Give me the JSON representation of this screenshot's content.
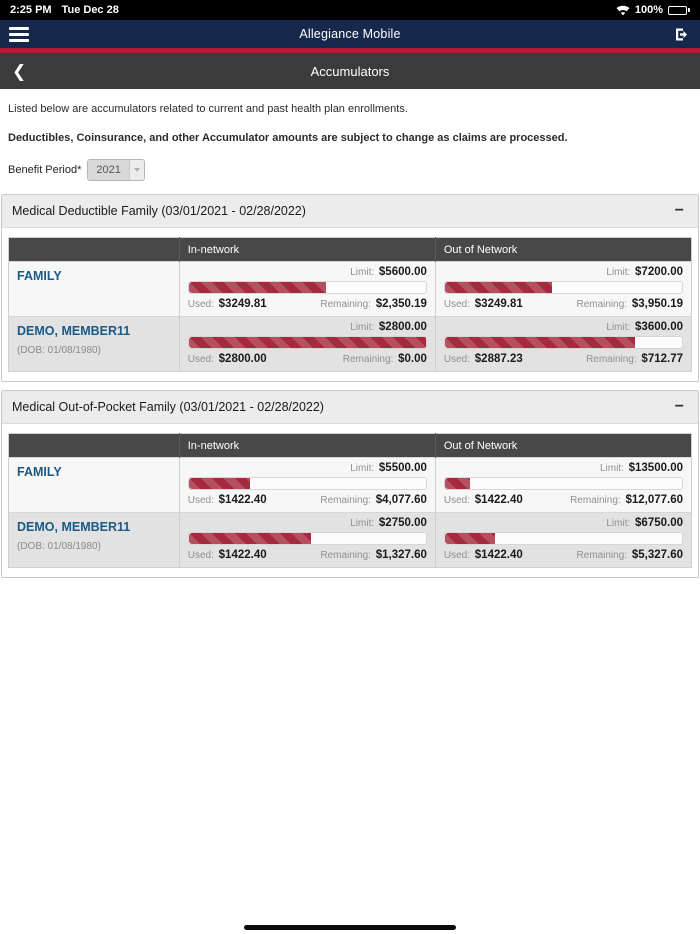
{
  "status_bar": {
    "time": "2:25 PM",
    "date": "Tue Dec 28",
    "battery": "100%"
  },
  "nav": {
    "title": "Allegiance Mobile"
  },
  "subheader": {
    "title": "Accumulators",
    "back": "❮"
  },
  "intro": {
    "line1": "Listed below are accumulators related to current and past health plan enrollments.",
    "line2": "Deductibles, Coinsurance, and other Accumulator amounts are subject to change as claims are processed."
  },
  "benefit_period": {
    "label": "Benefit Period*",
    "value": "2021"
  },
  "labels": {
    "in_network": "In-network",
    "out_of_network": "Out of Network",
    "limit": "Limit:",
    "used": "Used:",
    "remaining": "Remaining:",
    "collapse": "−"
  },
  "colors": {
    "navy": "#16294d",
    "red_strip": "#ae2038",
    "bar_red": "#a52a3d",
    "table_header": "#484848",
    "member_name_blue": "#1a5a86"
  },
  "sections": [
    {
      "title": "Medical Deductible Family (03/01/2021 - 02/28/2022)",
      "rows": [
        {
          "name": "FAMILY",
          "dob": "",
          "in_network": {
            "limit": "$5600.00",
            "used": "$3249.81",
            "remaining": "$2,350.19",
            "pct": 58
          },
          "out_of_network": {
            "limit": "$7200.00",
            "used": "$3249.81",
            "remaining": "$3,950.19",
            "pct": 45.1
          }
        },
        {
          "name": "DEMO, MEMBER11",
          "dob": "(DOB: 01/08/1980)",
          "in_network": {
            "limit": "$2800.00",
            "used": "$2800.00",
            "remaining": "$0.00",
            "pct": 100
          },
          "out_of_network": {
            "limit": "$3600.00",
            "used": "$2887.23",
            "remaining": "$712.77",
            "pct": 80.2
          }
        }
      ]
    },
    {
      "title": "Medical Out-of-Pocket Family (03/01/2021 - 02/28/2022)",
      "rows": [
        {
          "name": "FAMILY",
          "dob": "",
          "in_network": {
            "limit": "$5500.00",
            "used": "$1422.40",
            "remaining": "$4,077.60",
            "pct": 25.9
          },
          "out_of_network": {
            "limit": "$13500.00",
            "used": "$1422.40",
            "remaining": "$12,077.60",
            "pct": 10.5
          }
        },
        {
          "name": "DEMO, MEMBER11",
          "dob": "(DOB: 01/08/1980)",
          "in_network": {
            "limit": "$2750.00",
            "used": "$1422.40",
            "remaining": "$1,327.60",
            "pct": 51.7
          },
          "out_of_network": {
            "limit": "$6750.00",
            "used": "$1422.40",
            "remaining": "$5,327.60",
            "pct": 21.1
          }
        }
      ]
    }
  ]
}
